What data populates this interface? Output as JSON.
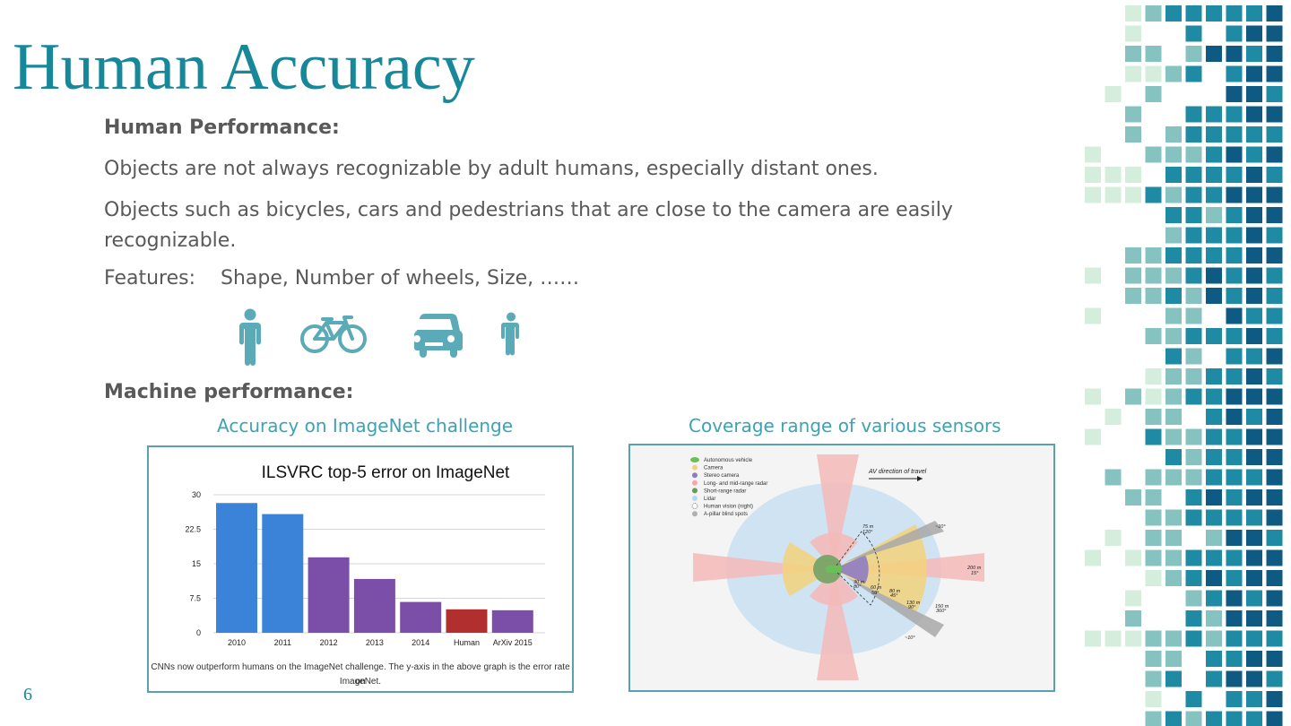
{
  "title": "Human Accuracy",
  "human_performance_heading": "Human Performance:",
  "paragraph1": "Objects are not always recognizable by adult humans, especially distant ones.",
  "paragraph2_line1": "Objects such as bicycles, cars and pedestrians that are close to the camera are easily",
  "paragraph2_line2": "recognizable.",
  "features_label": "Features:",
  "features_value": "Shape, Number of wheels, Size, ……",
  "machine_performance_heading": "Machine performance:",
  "left_caption": "Accuracy on ImageNet challenge",
  "right_caption": "Coverage range of various sensors",
  "slide_number": "6",
  "colors": {
    "accent": "#17879a",
    "body_text": "#595959",
    "caption": "#3da3b3",
    "frame": "#5aa0ae",
    "icon": "#5aaab8"
  },
  "icons": [
    "person-icon",
    "bicycle-icon",
    "car-icon",
    "child-icon"
  ],
  "chart_data": {
    "type": "bar",
    "title": "ILSVRC top-5 error on ImageNet",
    "categories": [
      "2010",
      "2011",
      "2012",
      "2013",
      "2014",
      "Human",
      "ArXiv 2015"
    ],
    "values": [
      28.2,
      25.8,
      16.4,
      11.7,
      6.7,
      5.1,
      4.9
    ],
    "bar_colors": [
      "#3b82d9",
      "#3b82d9",
      "#7b4fa8",
      "#7b4fa8",
      "#7b4fa8",
      "#b22f2f",
      "#7b4fa8"
    ],
    "yticks": [
      "0",
      "7.5",
      "15",
      "22.5",
      "30"
    ],
    "ylim": [
      0,
      30
    ],
    "grid": true,
    "caption_line1": "CNNs now outperform humans on the ImageNet challenge. The y-axis in the above graph is the error rate on",
    "caption_line2": "ImageNet."
  },
  "sensor_diagram": {
    "legend": [
      "Autonomous vehicle",
      "Camera",
      "Stereo camera",
      "Long- and mid-range radar",
      "Short-range radar",
      "Lidar",
      "Human vision (night)",
      "A-pillar blind spots"
    ],
    "legend_colors": [
      "#6bbf59",
      "#f3d27a",
      "#8e7cc3",
      "#f2a9a9",
      "#6a9a5a",
      "#b6d8f0",
      "#ffffff",
      "#b0b0b0"
    ],
    "direction_label": "AV direction of travel",
    "labels": [
      "75 m",
      "120°",
      "~10°",
      "200 m",
      "15°",
      "30 m",
      "80°",
      "60 m",
      "56°",
      "80 m",
      "45°",
      "130 m",
      "90°",
      "150 m",
      "360°",
      "~10°"
    ]
  }
}
